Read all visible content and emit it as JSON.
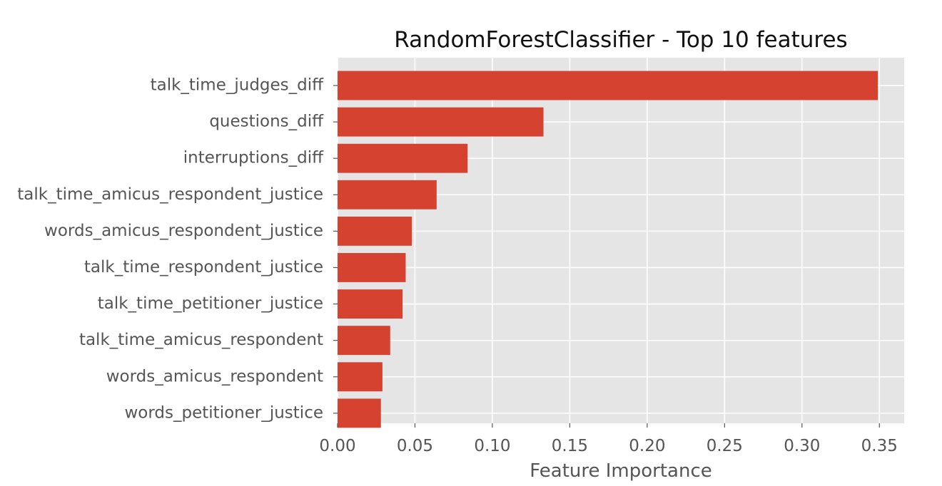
{
  "chart_data": {
    "type": "bar",
    "orientation": "horizontal",
    "title": "RandomForestClassifier - Top 10 features",
    "xlabel": "Feature Importance",
    "ylabel": "",
    "categories": [
      "talk_time_judges_diff",
      "questions_diff",
      "interruptions_diff",
      "talk_time_amicus_respondent_justice",
      "words_amicus_respondent_justice",
      "talk_time_respondent_justice",
      "talk_time_petitioner_justice",
      "talk_time_amicus_respondent",
      "words_amicus_respondent",
      "words_petitioner_justice"
    ],
    "values": [
      0.349,
      0.133,
      0.084,
      0.064,
      0.048,
      0.044,
      0.042,
      0.034,
      0.029,
      0.028
    ],
    "xlim": [
      0,
      0.366
    ],
    "xticks": [
      0.0,
      0.05,
      0.1,
      0.15,
      0.2,
      0.25,
      0.3,
      0.35
    ],
    "xtick_labels": [
      "0.00",
      "0.05",
      "0.10",
      "0.15",
      "0.20",
      "0.25",
      "0.30",
      "0.35"
    ],
    "grid": true,
    "style": "ggplot",
    "colors": {
      "bar": "#d64230",
      "plot_background": "#e5e5e5",
      "grid": "#ffffff",
      "tick_text": "#555555",
      "title_text": "#111111"
    }
  }
}
